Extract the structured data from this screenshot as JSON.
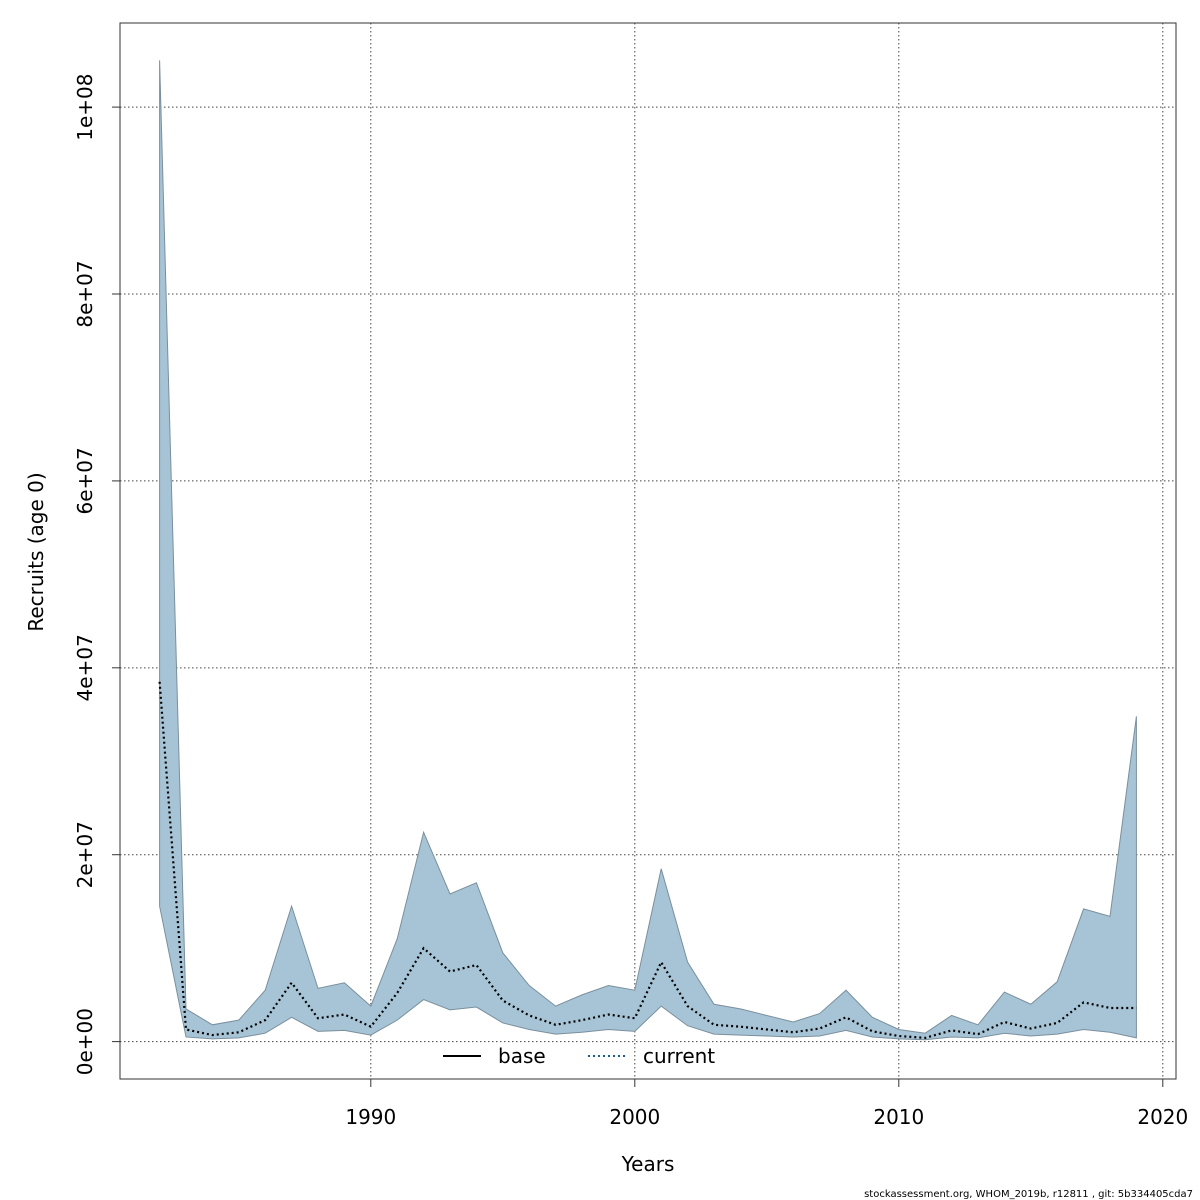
{
  "chart_data": {
    "type": "area",
    "title": "",
    "xlabel": "Years",
    "ylabel": "Recruits (age 0)",
    "xlim": [
      1980.5,
      2020.5
    ],
    "ylim": [
      -4000000,
      109000000
    ],
    "x_ticks": [
      1990,
      2000,
      2010,
      2020
    ],
    "x_tick_labels": [
      "1990",
      "2000",
      "2010",
      "2020"
    ],
    "y_ticks": [
      0,
      20000000,
      40000000,
      60000000,
      80000000,
      100000000
    ],
    "y_tick_labels": [
      "0e+00",
      "2e+07",
      "4e+07",
      "6e+07",
      "8e+07",
      "1e+08"
    ],
    "grid": true,
    "legend": {
      "placement": "bottom-center",
      "entries": [
        {
          "label": "base",
          "color": "#000000",
          "style": "solid"
        },
        {
          "label": "current",
          "color": "#1a5d8f",
          "style": "dotted"
        }
      ]
    },
    "band_color": "#a6c4d6",
    "band_edge_color": "#7a8f9c",
    "series": [
      {
        "name": "current",
        "x": [
          1982,
          1983,
          1984,
          1985,
          1986,
          1987,
          1988,
          1989,
          1990,
          1991,
          1992,
          1993,
          1994,
          1995,
          1996,
          1997,
          1998,
          1999,
          2000,
          2001,
          2002,
          2003,
          2004,
          2005,
          2006,
          2007,
          2008,
          2009,
          2010,
          2011,
          2012,
          2013,
          2014,
          2015,
          2016,
          2017,
          2018,
          2019
        ],
        "estimate": [
          38500000,
          1300000,
          700000,
          1000000,
          2300000,
          6300000,
          2500000,
          2900000,
          1600000,
          5200000,
          10000000,
          7500000,
          8200000,
          4400000,
          2800000,
          1800000,
          2300000,
          2900000,
          2500000,
          8500000,
          3800000,
          1800000,
          1600000,
          1300000,
          1000000,
          1400000,
          2600000,
          1100000,
          600000,
          400000,
          1200000,
          800000,
          2100000,
          1400000,
          2000000,
          4200000,
          3600000,
          3600000
        ],
        "lower": [
          14500000,
          500000,
          300000,
          400000,
          900000,
          2600000,
          1100000,
          1200000,
          700000,
          2300000,
          4500000,
          3400000,
          3700000,
          2000000,
          1300000,
          800000,
          1000000,
          1300000,
          1100000,
          3800000,
          1700000,
          800000,
          700000,
          600000,
          500000,
          600000,
          1200000,
          500000,
          300000,
          200000,
          500000,
          400000,
          900000,
          600000,
          800000,
          1300000,
          1000000,
          400000
        ],
        "upper": [
          105000000,
          3500000,
          1800000,
          2300000,
          5500000,
          14500000,
          5700000,
          6300000,
          3800000,
          11000000,
          22400000,
          15800000,
          17000000,
          9500000,
          6000000,
          3800000,
          5000000,
          6000000,
          5500000,
          18500000,
          8500000,
          4000000,
          3500000,
          2800000,
          2100000,
          3000000,
          5500000,
          2600000,
          1300000,
          900000,
          2800000,
          1800000,
          5300000,
          4000000,
          6400000,
          14200000,
          13400000,
          34800000
        ]
      }
    ]
  },
  "footer": "stockassessment.org, WHOM_2019b, r12811 , git: 5b334405cda7"
}
